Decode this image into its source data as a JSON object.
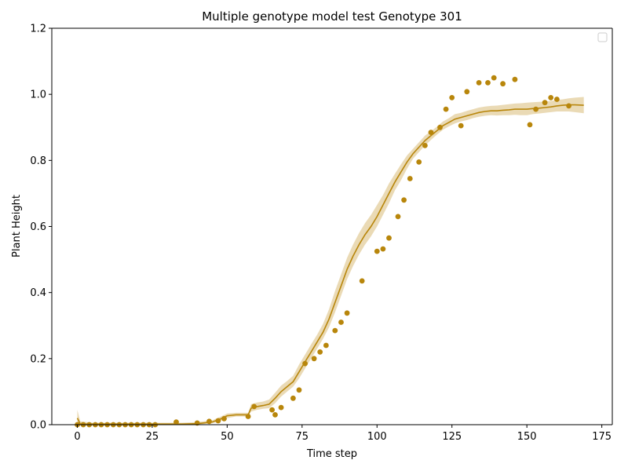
{
  "chart_data": {
    "type": "line",
    "title": "Multiple genotype model test Genotype 301",
    "xlabel": "Time step",
    "ylabel": "Plant Height",
    "xlim": [
      -8.5,
      178.5
    ],
    "ylim": [
      0.0,
      1.2
    ],
    "xticks": [
      "0",
      "25",
      "50",
      "75",
      "100",
      "125",
      "150",
      "175"
    ],
    "xtick_values": [
      0,
      25,
      50,
      75,
      100,
      125,
      150,
      175
    ],
    "yticks": [
      "0.0",
      "0.2",
      "0.4",
      "0.6",
      "0.8",
      "1.0",
      "1.2"
    ],
    "ytick_values": [
      0.0,
      0.2,
      0.4,
      0.6,
      0.8,
      1.0,
      1.2
    ],
    "grid": false,
    "legend": "top-right (empty)",
    "colors": {
      "line": "#b8860b",
      "band": "#b8860b",
      "points": "#b8860b"
    },
    "series": [
      {
        "kind": "line",
        "x": [
          0,
          1,
          5,
          10,
          15,
          20,
          25,
          30,
          35,
          40,
          45,
          48,
          50,
          53,
          55,
          57,
          58,
          60,
          62,
          64,
          66,
          68,
          70,
          72,
          74,
          76,
          78,
          80,
          82,
          84,
          86,
          88,
          90,
          92,
          94,
          96,
          98,
          100,
          102,
          104,
          106,
          108,
          110,
          112,
          114,
          116,
          118,
          120,
          122,
          124,
          126,
          128,
          130,
          132,
          134,
          136,
          138,
          140,
          142,
          144,
          146,
          148,
          150,
          152,
          154,
          156,
          158,
          160,
          162,
          164,
          166,
          169
        ],
        "y": [
          0.02,
          0.002,
          0.002,
          0.002,
          0.002,
          0.002,
          0.002,
          0.002,
          0.002,
          0.003,
          0.008,
          0.018,
          0.027,
          0.03,
          0.03,
          0.03,
          0.05,
          0.055,
          0.058,
          0.062,
          0.08,
          0.1,
          0.115,
          0.13,
          0.16,
          0.19,
          0.22,
          0.25,
          0.28,
          0.32,
          0.37,
          0.42,
          0.47,
          0.51,
          0.545,
          0.575,
          0.6,
          0.63,
          0.665,
          0.7,
          0.735,
          0.765,
          0.795,
          0.82,
          0.84,
          0.86,
          0.875,
          0.89,
          0.905,
          0.915,
          0.925,
          0.93,
          0.935,
          0.94,
          0.945,
          0.948,
          0.95,
          0.95,
          0.952,
          0.953,
          0.955,
          0.955,
          0.955,
          0.957,
          0.958,
          0.96,
          0.962,
          0.965,
          0.967,
          0.968,
          0.968,
          0.967
        ]
      },
      {
        "kind": "band",
        "x": [
          0,
          1,
          5,
          10,
          15,
          20,
          25,
          30,
          35,
          40,
          45,
          48,
          50,
          53,
          55,
          57,
          58,
          60,
          62,
          64,
          66,
          68,
          70,
          72,
          74,
          76,
          78,
          80,
          82,
          84,
          86,
          88,
          90,
          92,
          94,
          96,
          98,
          100,
          102,
          104,
          106,
          108,
          110,
          112,
          114,
          116,
          118,
          120,
          122,
          124,
          126,
          128,
          130,
          132,
          134,
          136,
          138,
          140,
          142,
          144,
          146,
          148,
          150,
          152,
          154,
          156,
          158,
          160,
          162,
          164,
          166,
          169
        ],
        "lower": [
          0.005,
          0.0,
          0.0,
          0.0,
          0.0,
          0.0,
          0.0,
          0.0,
          0.0,
          0.0,
          0.004,
          0.012,
          0.02,
          0.025,
          0.025,
          0.025,
          0.04,
          0.045,
          0.048,
          0.05,
          0.065,
          0.085,
          0.1,
          0.115,
          0.14,
          0.17,
          0.2,
          0.23,
          0.26,
          0.295,
          0.34,
          0.39,
          0.44,
          0.48,
          0.515,
          0.545,
          0.57,
          0.6,
          0.635,
          0.67,
          0.71,
          0.74,
          0.775,
          0.805,
          0.825,
          0.845,
          0.862,
          0.878,
          0.893,
          0.903,
          0.912,
          0.918,
          0.922,
          0.928,
          0.932,
          0.935,
          0.937,
          0.936,
          0.937,
          0.937,
          0.938,
          0.937,
          0.937,
          0.94,
          0.942,
          0.944,
          0.946,
          0.948,
          0.948,
          0.948,
          0.946,
          0.943
        ]
      },
      {
        "kind": "band-upper",
        "upper": [
          0.045,
          0.01,
          0.006,
          0.006,
          0.006,
          0.006,
          0.006,
          0.006,
          0.006,
          0.008,
          0.013,
          0.025,
          0.034,
          0.036,
          0.036,
          0.036,
          0.062,
          0.067,
          0.07,
          0.076,
          0.097,
          0.118,
          0.132,
          0.148,
          0.182,
          0.212,
          0.243,
          0.272,
          0.305,
          0.35,
          0.405,
          0.455,
          0.505,
          0.545,
          0.58,
          0.61,
          0.635,
          0.665,
          0.695,
          0.73,
          0.76,
          0.788,
          0.815,
          0.835,
          0.855,
          0.875,
          0.888,
          0.902,
          0.918,
          0.928,
          0.94,
          0.944,
          0.95,
          0.955,
          0.96,
          0.963,
          0.965,
          0.966,
          0.968,
          0.97,
          0.972,
          0.973,
          0.975,
          0.976,
          0.977,
          0.978,
          0.98,
          0.983,
          0.985,
          0.988,
          0.99,
          0.992
        ]
      },
      {
        "kind": "scatter",
        "x": [
          0,
          2,
          4,
          6,
          8,
          10,
          12,
          14,
          16,
          18,
          20,
          22,
          24,
          26,
          33,
          40,
          44,
          47,
          49,
          57,
          59,
          65,
          66,
          68,
          72,
          74,
          76,
          79,
          81,
          83,
          86,
          88,
          90,
          95,
          100,
          102,
          104,
          107,
          109,
          111,
          114,
          116,
          118,
          121,
          123,
          125,
          128,
          130,
          134,
          137,
          139,
          142,
          146,
          151,
          153,
          156,
          158,
          160,
          164
        ],
        "y": [
          0.0,
          0.0,
          0.0,
          0.0,
          0.0,
          0.0,
          0.0,
          0.0,
          0.0,
          0.0,
          0.0,
          0.0,
          0.0,
          0.0,
          0.008,
          0.005,
          0.01,
          0.012,
          0.018,
          0.025,
          0.055,
          0.045,
          0.03,
          0.052,
          0.08,
          0.105,
          0.185,
          0.2,
          0.22,
          0.24,
          0.285,
          0.31,
          0.338,
          0.435,
          0.525,
          0.532,
          0.565,
          0.63,
          0.68,
          0.745,
          0.795,
          0.845,
          0.885,
          0.9,
          0.955,
          0.99,
          0.905,
          1.008,
          1.035,
          1.035,
          1.05,
          1.032,
          1.045,
          0.908,
          0.955,
          0.975,
          0.99,
          0.985,
          0.965
        ]
      }
    ]
  }
}
